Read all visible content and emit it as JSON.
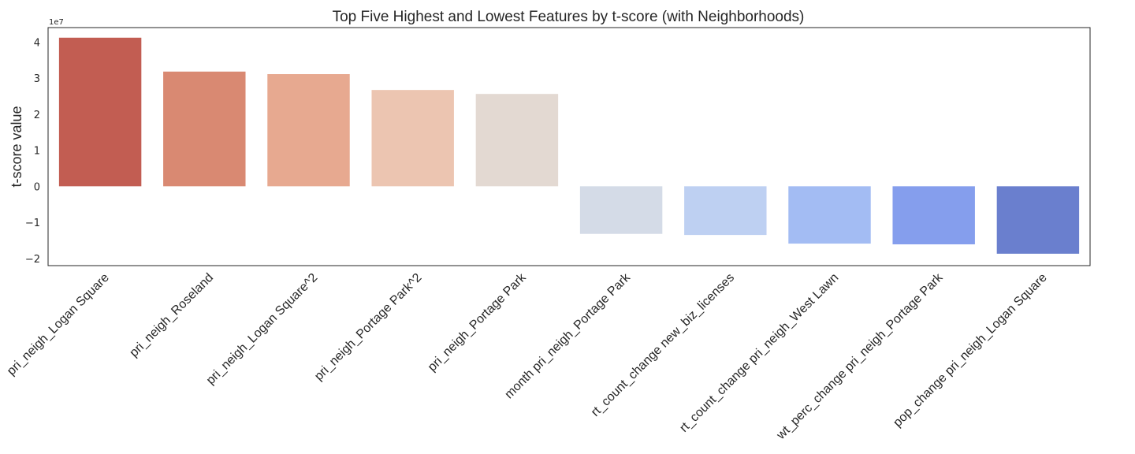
{
  "chart_data": {
    "type": "bar",
    "title": "Top Five Highest and Lowest Features by t-score (with Neighborhoods)",
    "xlabel": "",
    "ylabel": "t-score value",
    "y_offset_label": "1e7",
    "ylim": [
      -2.2,
      4.4
    ],
    "yticks": [
      -2,
      -1,
      0,
      1,
      2,
      3,
      4
    ],
    "ytick_labels": [
      "−2",
      "−1",
      "0",
      "1",
      "2",
      "3",
      "4"
    ],
    "grid": false,
    "legend": "none",
    "categories": [
      "pri_neigh_Logan Square",
      "pri_neigh_Roseland",
      "pri_neigh_Logan Square^2",
      "pri_neigh_Portage Park^2",
      "pri_neigh_Portage Park",
      "month pri_neigh_Portage Park",
      "rt_count_change new_biz_licenses",
      "rt_count_change pri_neigh_West Lawn",
      "wt_perc_change pri_neigh_Portage Park",
      "pop_change pri_neigh_Logan Square"
    ],
    "values": [
      4.12,
      3.18,
      3.11,
      2.67,
      2.56,
      -1.32,
      -1.35,
      -1.59,
      -1.61,
      -1.87
    ],
    "colors": [
      "#c25d52",
      "#d98972",
      "#e7a990",
      "#ecc5b1",
      "#e3d9d2",
      "#d4dbe7",
      "#bed0f2",
      "#a3bcf3",
      "#859eed",
      "#6a7fce"
    ]
  }
}
